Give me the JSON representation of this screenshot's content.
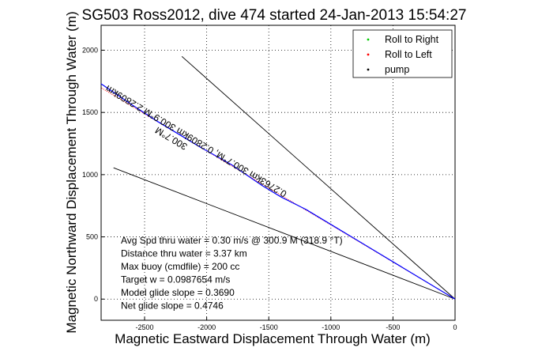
{
  "chart_data": {
    "type": "line",
    "title": "SG503 Ross2012, dive 474 started 24-Jan-2013 15:54:27",
    "xlabel": "Magnetic Eastward Displacement Through Water (m)",
    "ylabel": "Magnetic Northward Displacement Through Water (m)",
    "xlim": [
      -2850,
      0
    ],
    "ylim": [
      -170,
      2200
    ],
    "xticks": [
      -2500,
      -2000,
      -1500,
      -1000,
      -500,
      0
    ],
    "yticks": [
      0,
      500,
      1000,
      1500,
      2000
    ],
    "grid": true,
    "legend_position": "top-right",
    "legend": [
      {
        "label": "Roll to Right",
        "color": "#00cc00",
        "marker": "."
      },
      {
        "label": "Roll to Left",
        "color": "#ff0000",
        "marker": "."
      },
      {
        "label": "pump",
        "color": "#000000",
        "marker": "."
      }
    ],
    "track": {
      "color": "#0000ff",
      "x": [
        0,
        -150,
        -400,
        -700,
        -1000,
        -1200,
        -1400,
        -1550,
        -1800,
        -2050,
        -2200,
        -2400,
        -2600,
        -2850
      ],
      "y": [
        0,
        90,
        240,
        420,
        600,
        720,
        820,
        910,
        1080,
        1220,
        1310,
        1430,
        1560,
        1730
      ]
    },
    "roll_left": {
      "color": "#ff0000",
      "x": [
        0,
        -500,
        -1000,
        -1500,
        -2000,
        -2500,
        -2850
      ],
      "y": [
        0,
        298,
        596,
        893,
        1191,
        1489,
        1698
      ]
    },
    "reference_lines": [
      {
        "color": "#000000",
        "x": [
          0,
          -2200
        ],
        "y": [
          0,
          1950
        ]
      },
      {
        "color": "#000000",
        "x": [
          0,
          -2750
        ],
        "y": [
          0,
          1055
        ]
      }
    ],
    "track_labels": [
      {
        "text": "300.7°M",
        "x": -2150,
        "y": 1240
      },
      {
        "text": "0.2763km 300.7°M, 0.2809km 300.9°M 2.2809km",
        "x": -1350,
        "y": 860
      }
    ],
    "annotations": [
      "Avg Spd thru water =  0.30 m/s @ 300.9   M (318.9 °T)",
      "Distance thru water =  3.37 km",
      "Max buoy (cmdfile) = 200 cc",
      "Target w = 0.0987654 m/s",
      "Model glide slope = 0.3690",
      "Net glide slope = 0.4746"
    ]
  }
}
